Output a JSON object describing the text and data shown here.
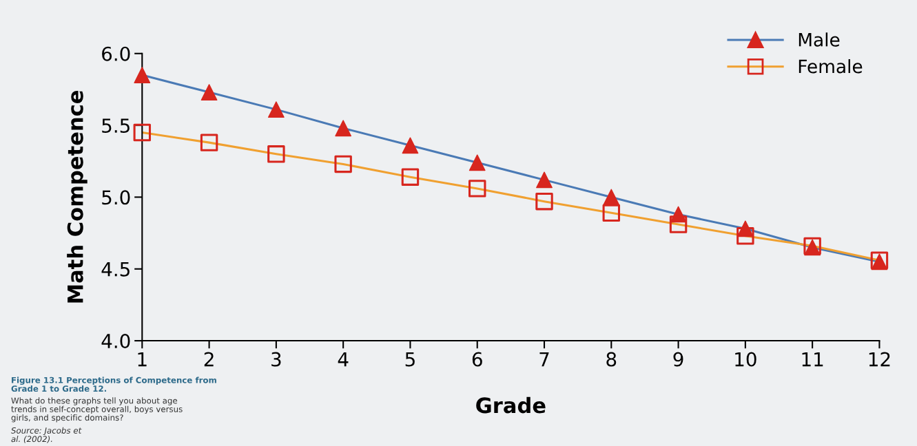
{
  "chart_data": {
    "type": "line",
    "xlabel": "Grade",
    "ylabel": "Math Competence",
    "x": [
      1,
      2,
      3,
      4,
      5,
      6,
      7,
      8,
      9,
      10,
      11,
      12
    ],
    "xlim": [
      1,
      12
    ],
    "xticks": [
      1,
      2,
      3,
      4,
      5,
      6,
      7,
      8,
      9,
      10,
      11,
      12
    ],
    "ylim": [
      4.0,
      6.0
    ],
    "yticks": [
      {
        "value": 4.0,
        "label": "4.0"
      },
      {
        "value": 4.5,
        "label": "4.5"
      },
      {
        "value": 5.0,
        "label": "5.0"
      },
      {
        "value": 5.5,
        "label": "5.5"
      },
      {
        "value": 6.0,
        "label": "6.0"
      }
    ],
    "grid": false,
    "legend": "top right",
    "line_style": "solid",
    "series": [
      {
        "name": "Male",
        "color": "#4a7ab5",
        "marker": "triangle",
        "colors": [
          "#d7261e",
          "#d7261e",
          "#d7261e",
          "#d7261e",
          "#d7261e",
          "#d7261e",
          "#d7261e",
          "#d7261e",
          "#d7261e",
          "#d7261e",
          "#d7261e",
          "#d7261e"
        ],
        "values": [
          5.85,
          5.73,
          5.61,
          5.48,
          5.36,
          5.24,
          5.12,
          5.0,
          4.88,
          4.78,
          4.65,
          4.55
        ]
      },
      {
        "name": "Female",
        "color": "#f0a030",
        "marker": "square",
        "colors": [
          "#d7261e",
          "#d7261e",
          "#d7261e",
          "#d7261e",
          "#d7261e",
          "#d7261e",
          "#d7261e",
          "#d7261e",
          "#d7261e",
          "#d7261e",
          "#d7261e",
          "#d7261e"
        ],
        "values": [
          5.45,
          5.38,
          5.3,
          5.23,
          5.14,
          5.06,
          4.97,
          4.89,
          4.81,
          4.73,
          4.66,
          4.56
        ]
      }
    ],
    "annotations": [
      "Figure 13.1 Perceptions of Competence from\nGrade 1 to Grade 12.",
      "What do these graphs tell you about age\ntrends in self-concept overall, boys versus\ngirls, and specific domains?",
      "Source: Jacobs et\nal. (2002)."
    ]
  }
}
